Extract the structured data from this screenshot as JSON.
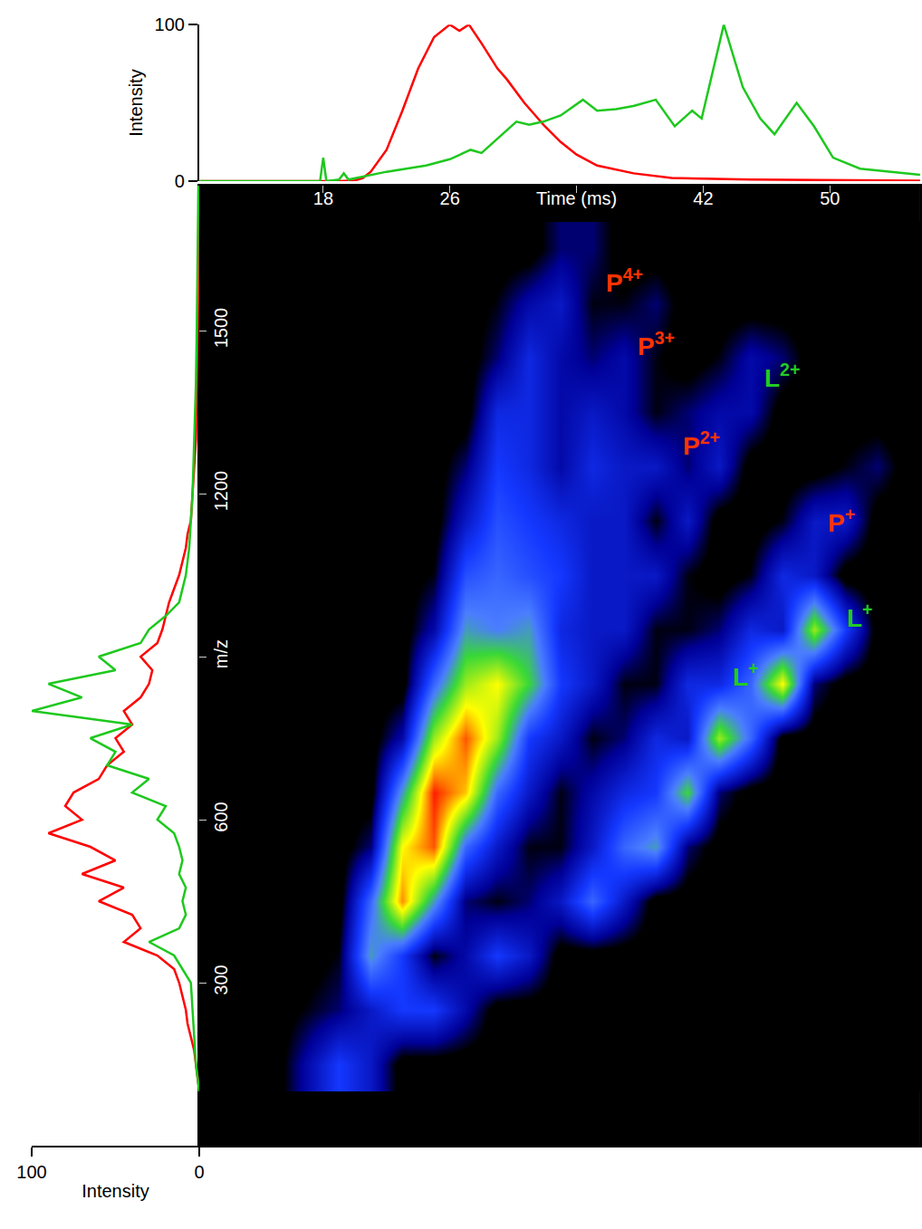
{
  "chart_data": [
    {
      "type": "heatmap",
      "x": [
        13,
        15,
        17,
        19,
        21,
        23,
        25,
        27,
        29,
        31,
        33,
        35,
        37,
        39,
        41,
        43,
        45,
        47,
        49,
        51,
        53,
        55
      ],
      "y": [
        150,
        250,
        350,
        450,
        550,
        650,
        750,
        850,
        950,
        1050,
        1150,
        1250,
        1350,
        1450,
        1550,
        1650
      ],
      "z": [
        [
          0,
          0,
          15,
          30,
          20,
          0,
          0,
          0,
          0,
          0,
          0,
          0,
          0,
          0,
          0,
          0,
          0,
          0,
          0,
          0,
          0,
          0
        ],
        [
          0,
          0,
          5,
          10,
          20,
          30,
          30,
          15,
          0,
          0,
          0,
          0,
          0,
          0,
          0,
          0,
          0,
          0,
          0,
          0,
          0,
          0
        ],
        [
          0,
          0,
          0,
          5,
          50,
          30,
          5,
          15,
          30,
          20,
          0,
          0,
          0,
          0,
          0,
          0,
          0,
          0,
          0,
          0,
          0,
          0
        ],
        [
          0,
          0,
          0,
          0,
          40,
          90,
          50,
          10,
          5,
          10,
          20,
          40,
          20,
          0,
          0,
          0,
          0,
          0,
          0,
          0,
          0,
          0
        ],
        [
          0,
          0,
          0,
          0,
          10,
          80,
          95,
          40,
          20,
          5,
          5,
          20,
          40,
          50,
          10,
          0,
          0,
          0,
          0,
          0,
          0,
          0
        ],
        [
          0,
          0,
          0,
          0,
          0,
          50,
          100,
          85,
          40,
          20,
          5,
          15,
          25,
          30,
          60,
          10,
          0,
          0,
          0,
          0,
          0,
          0
        ],
        [
          0,
          0,
          0,
          0,
          0,
          15,
          70,
          95,
          70,
          30,
          20,
          5,
          10,
          25,
          20,
          70,
          40,
          0,
          0,
          0,
          0,
          0
        ],
        [
          0,
          0,
          0,
          0,
          0,
          0,
          40,
          70,
          80,
          60,
          30,
          20,
          5,
          5,
          25,
          25,
          40,
          80,
          10,
          0,
          0,
          0
        ],
        [
          0,
          0,
          0,
          0,
          0,
          0,
          15,
          50,
          45,
          50,
          25,
          20,
          20,
          5,
          5,
          10,
          25,
          20,
          70,
          30,
          0,
          0
        ],
        [
          0,
          0,
          0,
          0,
          0,
          0,
          5,
          35,
          40,
          35,
          30,
          20,
          20,
          20,
          5,
          0,
          5,
          25,
          20,
          0,
          0,
          0
        ],
        [
          0,
          0,
          0,
          0,
          0,
          0,
          0,
          20,
          35,
          30,
          25,
          20,
          20,
          5,
          20,
          0,
          0,
          5,
          20,
          20,
          0,
          0
        ],
        [
          0,
          0,
          0,
          0,
          0,
          0,
          0,
          10,
          30,
          25,
          15,
          25,
          20,
          20,
          10,
          20,
          0,
          0,
          0,
          5,
          10,
          0
        ],
        [
          0,
          0,
          0,
          0,
          0,
          0,
          0,
          0,
          25,
          25,
          15,
          20,
          15,
          5,
          10,
          15,
          15,
          0,
          0,
          0,
          0,
          0
        ],
        [
          0,
          0,
          0,
          0,
          0,
          0,
          0,
          0,
          10,
          25,
          15,
          10,
          15,
          5,
          0,
          5,
          15,
          10,
          0,
          0,
          0,
          0
        ],
        [
          0,
          0,
          0,
          0,
          0,
          0,
          0,
          0,
          5,
          15,
          20,
          5,
          5,
          10,
          0,
          0,
          0,
          0,
          0,
          0,
          0,
          0
        ],
        [
          0,
          0,
          0,
          0,
          0,
          0,
          0,
          0,
          0,
          0,
          10,
          10,
          0,
          0,
          0,
          0,
          0,
          0,
          0,
          0,
          0,
          0
        ]
      ],
      "zlim": [
        0,
        100
      ],
      "xlim": [
        10.17,
        55.7
      ],
      "ylim": [
        0,
        1767
      ],
      "xticks": [
        18,
        26,
        {
          "value": 34,
          "label": "Time (ms)"
        },
        42,
        50
      ],
      "yticks": [
        300,
        600,
        {
          "value": 900,
          "label": "m/z"
        },
        1200,
        1500
      ],
      "annotations": [
        {
          "text": "P",
          "sup": "4+",
          "x": 37.0,
          "y": 1592,
          "color": "#ff3300"
        },
        {
          "text": "P",
          "sup": "3+",
          "x": 39.0,
          "y": 1475,
          "color": "#ff3300"
        },
        {
          "text": "L",
          "sup": "2+",
          "x": 47.0,
          "y": 1417,
          "color": "#22cc22"
        },
        {
          "text": "P",
          "sup": "2+",
          "x": 41.9,
          "y": 1292,
          "color": "#ff3300"
        },
        {
          "text": "P",
          "sup": "+",
          "x": 50.7,
          "y": 1150,
          "color": "#ff3300"
        },
        {
          "text": "L",
          "sup": "+",
          "x": 51.9,
          "y": 975,
          "color": "#22cc22"
        },
        {
          "text": "L",
          "sup": "+",
          "x": 44.7,
          "y": 867,
          "color": "#22cc22"
        }
      ]
    },
    {
      "type": "line",
      "ylabel": "Intensity",
      "xlim": [
        10.17,
        55.7
      ],
      "ylim": [
        0,
        100
      ],
      "yticks": [
        0,
        100
      ],
      "tick_labels": "y",
      "series": [
        {
          "color": "#ff0000",
          "x": [
            10.2,
            19,
            20,
            20.5,
            21,
            22,
            23,
            24,
            25,
            26,
            26.6,
            27.2,
            28,
            29,
            29.6,
            30.7,
            32,
            33,
            34,
            35.3,
            37.6,
            40,
            45,
            55.7
          ],
          "values": [
            0,
            0,
            0.5,
            2,
            6,
            20,
            45,
            72,
            92,
            100,
            96,
            100,
            88,
            72,
            65,
            50,
            35,
            25,
            17,
            10,
            5,
            2,
            1,
            0.3
          ]
        },
        {
          "color": "#1ec81e",
          "x": [
            10.2,
            17.8,
            18,
            18.2,
            19,
            19.3,
            19.6,
            22,
            24.5,
            26,
            27.3,
            28,
            30.2,
            31,
            31.9,
            33,
            34.4,
            35.3,
            36.5,
            37.6,
            39,
            40.2,
            41.3,
            41.9,
            43.3,
            44.5,
            45.6,
            46.5,
            47.9,
            49,
            50.2,
            51.9,
            55.7
          ],
          "values": [
            0,
            0,
            15,
            0,
            1,
            5,
            1,
            6,
            10,
            14,
            20,
            18,
            38,
            36,
            38,
            42,
            52,
            45,
            46,
            48,
            52,
            35,
            45,
            40,
            100,
            60,
            40,
            30,
            50,
            35,
            15,
            8,
            4
          ]
        }
      ]
    },
    {
      "type": "line",
      "orientation": "horizontal",
      "xlabel": "Intensity",
      "xlim": [
        100,
        0
      ],
      "xticks": [
        100,
        0
      ],
      "ylim": [
        0,
        1767
      ],
      "tick_labels": "x",
      "series": [
        {
          "color": "#ff0000",
          "y": [
            100,
            125,
            150,
            175,
            200,
            225,
            250,
            275,
            300,
            325,
            350,
            375,
            400,
            425,
            450,
            475,
            500,
            525,
            550,
            575,
            600,
            625,
            650,
            675,
            700,
            725,
            750,
            775,
            800,
            825,
            850,
            875,
            900,
            925,
            950,
            975,
            1000,
            1025,
            1050,
            1075,
            1100,
            1125,
            1150,
            1200,
            1300,
            1400,
            1500,
            1600,
            1767
          ],
          "values": [
            0,
            1,
            2,
            3,
            5,
            7,
            8,
            10,
            12,
            15,
            25,
            45,
            35,
            40,
            60,
            45,
            70,
            50,
            65,
            90,
            70,
            80,
            75,
            60,
            55,
            45,
            50,
            40,
            45,
            35,
            30,
            28,
            35,
            25,
            22,
            20,
            18,
            15,
            12,
            10,
            8,
            7,
            5,
            4,
            2,
            1.5,
            1,
            0.5,
            0.3
          ]
        },
        {
          "color": "#1ec81e",
          "y": [
            100,
            150,
            200,
            250,
            300,
            350,
            375,
            400,
            425,
            450,
            475,
            500,
            525,
            550,
            575,
            600,
            625,
            650,
            675,
            700,
            725,
            750,
            775,
            800,
            825,
            850,
            875,
            900,
            925,
            950,
            975,
            1000,
            1025,
            1050,
            1100,
            1150,
            1200,
            1300,
            1400,
            1500,
            1600,
            1767
          ],
          "values": [
            0,
            2,
            3,
            4,
            5,
            15,
            30,
            12,
            8,
            10,
            8,
            12,
            10,
            12,
            15,
            25,
            20,
            40,
            30,
            55,
            50,
            65,
            40,
            100,
            70,
            90,
            50,
            60,
            35,
            30,
            20,
            12,
            10,
            8,
            6,
            5,
            4,
            3,
            2,
            1.5,
            1,
            0.5
          ]
        }
      ]
    }
  ]
}
